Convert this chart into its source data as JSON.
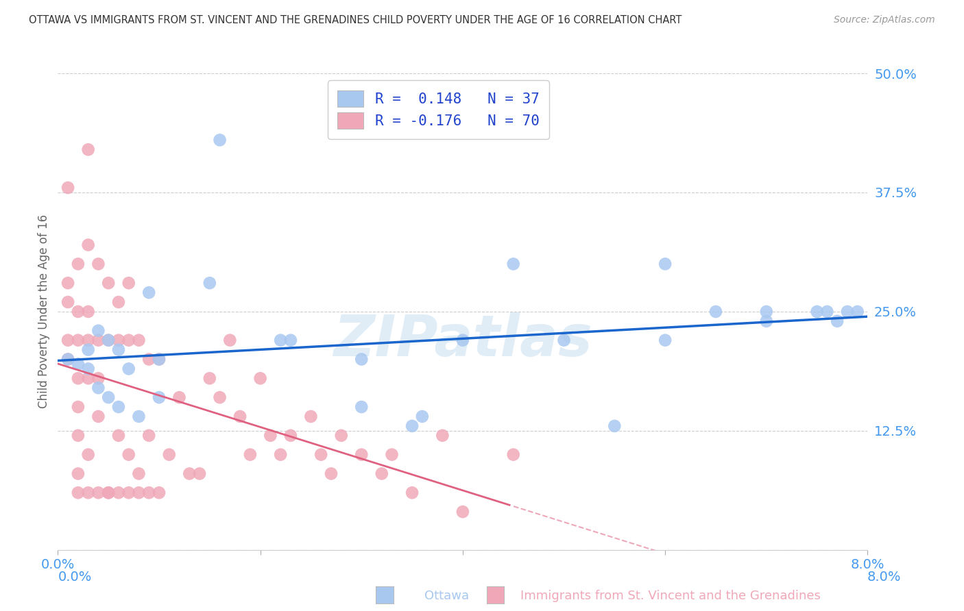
{
  "title": "OTTAWA VS IMMIGRANTS FROM ST. VINCENT AND THE GRENADINES CHILD POVERTY UNDER THE AGE OF 16 CORRELATION CHART",
  "source": "Source: ZipAtlas.com",
  "xlabel_bottom_1": "Ottawa",
  "xlabel_bottom_2": "Immigrants from St. Vincent and the Grenadines",
  "ylabel": "Child Poverty Under the Age of 16",
  "xlim": [
    0.0,
    0.08
  ],
  "ylim": [
    0.0,
    0.5
  ],
  "xticks": [
    0.0,
    0.02,
    0.04,
    0.06,
    0.08
  ],
  "yticks": [
    0.0,
    0.125,
    0.25,
    0.375,
    0.5
  ],
  "xtick_labels": [
    "0.0%",
    "",
    "",
    "",
    "8.0%"
  ],
  "ytick_labels": [
    "",
    "12.5%",
    "25.0%",
    "37.5%",
    "50.0%"
  ],
  "color_ottawa": "#a8c8f0",
  "color_immigrants": "#f0a8b8",
  "color_line_ottawa": "#1a66cc",
  "color_line_immigrants": "#e06080",
  "color_axis_labels": "#4499ee",
  "color_title": "#333333",
  "color_source": "#999999",
  "watermark": "ZIPatlas",
  "background_color": "#ffffff",
  "grid_color": "#cccccc",
  "ottawa_x": [
    0.001,
    0.002,
    0.003,
    0.003,
    0.004,
    0.004,
    0.005,
    0.005,
    0.006,
    0.006,
    0.007,
    0.008,
    0.009,
    0.01,
    0.01,
    0.015,
    0.016,
    0.022,
    0.023,
    0.03,
    0.03,
    0.035,
    0.036,
    0.04,
    0.045,
    0.05,
    0.055,
    0.06,
    0.06,
    0.065,
    0.07,
    0.07,
    0.075,
    0.076,
    0.077,
    0.078,
    0.079
  ],
  "ottawa_y": [
    0.2,
    0.195,
    0.19,
    0.21,
    0.17,
    0.23,
    0.16,
    0.22,
    0.15,
    0.21,
    0.19,
    0.14,
    0.27,
    0.2,
    0.16,
    0.28,
    0.43,
    0.22,
    0.22,
    0.2,
    0.15,
    0.13,
    0.14,
    0.22,
    0.3,
    0.22,
    0.13,
    0.22,
    0.3,
    0.25,
    0.24,
    0.25,
    0.25,
    0.25,
    0.24,
    0.25,
    0.25
  ],
  "immigrants_x": [
    0.001,
    0.001,
    0.001,
    0.001,
    0.001,
    0.002,
    0.002,
    0.002,
    0.002,
    0.002,
    0.002,
    0.002,
    0.003,
    0.003,
    0.003,
    0.003,
    0.003,
    0.003,
    0.004,
    0.004,
    0.004,
    0.004,
    0.005,
    0.005,
    0.005,
    0.006,
    0.006,
    0.006,
    0.007,
    0.007,
    0.007,
    0.008,
    0.008,
    0.009,
    0.009,
    0.01,
    0.01,
    0.011,
    0.012,
    0.013,
    0.014,
    0.015,
    0.016,
    0.017,
    0.018,
    0.019,
    0.02,
    0.021,
    0.022,
    0.023,
    0.025,
    0.026,
    0.027,
    0.028,
    0.03,
    0.032,
    0.033,
    0.035,
    0.038,
    0.04,
    0.045,
    0.002,
    0.003,
    0.004,
    0.005,
    0.006,
    0.007,
    0.008,
    0.009
  ],
  "immigrants_y": [
    0.38,
    0.28,
    0.26,
    0.22,
    0.2,
    0.3,
    0.25,
    0.22,
    0.18,
    0.15,
    0.12,
    0.08,
    0.42,
    0.32,
    0.25,
    0.22,
    0.18,
    0.1,
    0.3,
    0.22,
    0.18,
    0.14,
    0.28,
    0.22,
    0.06,
    0.26,
    0.22,
    0.12,
    0.28,
    0.22,
    0.1,
    0.22,
    0.08,
    0.2,
    0.12,
    0.2,
    0.06,
    0.1,
    0.16,
    0.08,
    0.08,
    0.18,
    0.16,
    0.22,
    0.14,
    0.1,
    0.18,
    0.12,
    0.1,
    0.12,
    0.14,
    0.1,
    0.08,
    0.12,
    0.1,
    0.08,
    0.1,
    0.06,
    0.12,
    0.04,
    0.1,
    0.06,
    0.06,
    0.06,
    0.06,
    0.06,
    0.06,
    0.06,
    0.06
  ]
}
